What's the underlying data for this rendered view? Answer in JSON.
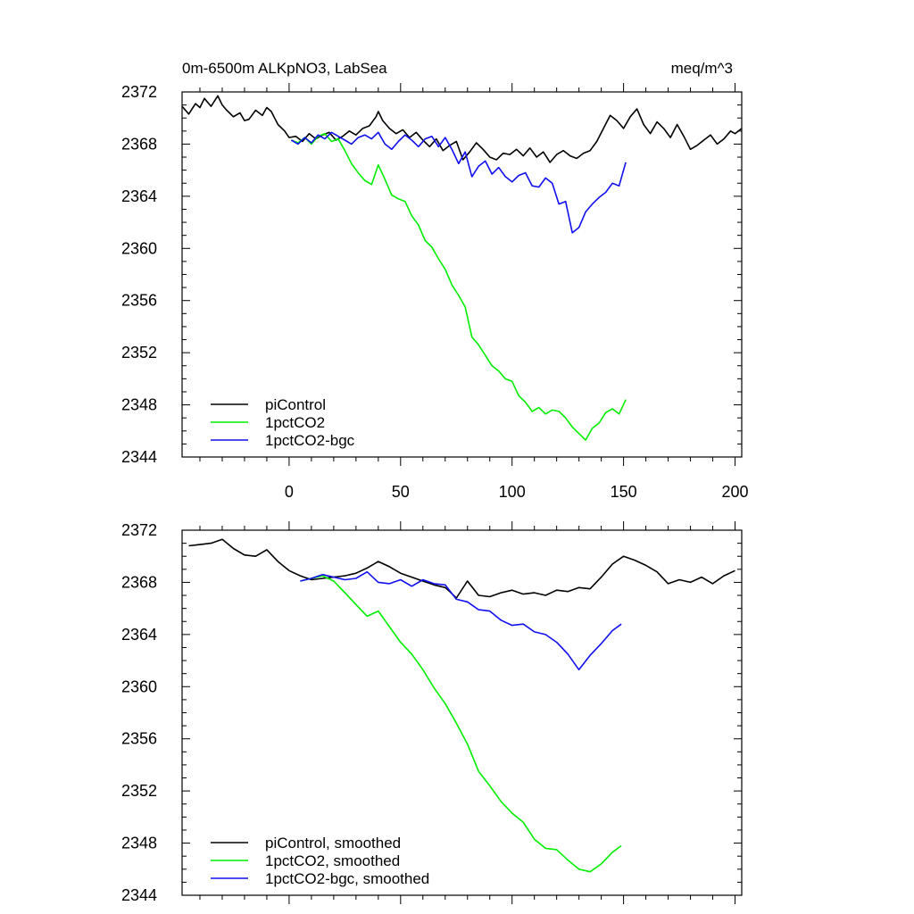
{
  "colors": {
    "piControl": "#000000",
    "1pctCO2": "#00ee00",
    "1pctCO2-bgc": "#1010ee"
  },
  "chart_data": [
    {
      "type": "line",
      "title": "0m-6500m ALKpNO3, LabSea",
      "units": "meq/m^3",
      "xlim": [
        -48,
        203
      ],
      "ylim": [
        2344,
        2372
      ],
      "x_ticks": [
        0,
        50,
        100,
        150,
        200
      ],
      "x_tick_labels": [
        "0",
        "50",
        "100",
        "150",
        "200"
      ],
      "y_ticks": [
        2344,
        2348,
        2352,
        2356,
        2360,
        2364,
        2368,
        2372
      ],
      "y_tick_labels": [
        "2344",
        "2348",
        "2352",
        "2356",
        "2360",
        "2364",
        "2368",
        "2372"
      ],
      "legend_position": "bottom-left",
      "series": [
        {
          "name": "piControl",
          "color_key": "piControl",
          "x": [
            -48,
            -45,
            -42,
            -40,
            -38,
            -35,
            -32,
            -30,
            -28,
            -25,
            -22,
            -20,
            -18,
            -15,
            -12,
            -10,
            -8,
            -5,
            -2,
            0,
            3,
            6,
            9,
            12,
            15,
            18,
            21,
            24,
            27,
            30,
            33,
            36,
            39,
            40,
            42,
            45,
            48,
            51,
            54,
            57,
            60,
            63,
            66,
            69,
            72,
            75,
            78,
            81,
            84,
            87,
            90,
            93,
            96,
            99,
            102,
            105,
            108,
            111,
            114,
            117,
            120,
            123,
            126,
            129,
            132,
            135,
            138,
            141,
            144,
            147,
            150,
            153,
            156,
            159,
            162,
            165,
            168,
            171,
            174,
            177,
            180,
            183,
            186,
            189,
            192,
            195,
            198,
            200,
            203
          ],
          "y": [
            2370.9,
            2370.3,
            2371.1,
            2370.8,
            2371.5,
            2370.9,
            2371.7,
            2371.0,
            2370.6,
            2370.1,
            2370.4,
            2369.8,
            2369.9,
            2370.6,
            2370.2,
            2370.8,
            2370.5,
            2369.5,
            2369.0,
            2368.5,
            2368.6,
            2368.2,
            2368.8,
            2368.4,
            2368.7,
            2368.9,
            2368.3,
            2368.6,
            2369.0,
            2368.7,
            2369.2,
            2369.4,
            2370.1,
            2370.5,
            2369.8,
            2369.2,
            2368.8,
            2369.1,
            2368.5,
            2368.9,
            2368.3,
            2367.8,
            2368.4,
            2367.5,
            2367.9,
            2368.2,
            2366.8,
            2367.4,
            2368.1,
            2367.6,
            2367.0,
            2366.8,
            2367.3,
            2367.2,
            2367.6,
            2367.1,
            2367.7,
            2367.0,
            2367.4,
            2366.6,
            2367.2,
            2367.5,
            2367.1,
            2366.9,
            2367.3,
            2367.5,
            2368.2,
            2369.2,
            2370.2,
            2369.8,
            2369.2,
            2370.1,
            2370.7,
            2369.5,
            2368.8,
            2369.7,
            2369.2,
            2368.5,
            2369.5,
            2368.6,
            2367.6,
            2367.9,
            2368.3,
            2368.7,
            2368.0,
            2368.4,
            2369.0,
            2368.8,
            2369.2
          ]
        },
        {
          "name": "1pctCO2",
          "color_key": "1pctCO2",
          "x": [
            1,
            4,
            7,
            10,
            13,
            16,
            19,
            22,
            25,
            28,
            31,
            34,
            37,
            40,
            43,
            46,
            49,
            52,
            55,
            58,
            61,
            64,
            67,
            70,
            73,
            76,
            79,
            82,
            85,
            88,
            91,
            94,
            97,
            100,
            103,
            106,
            109,
            112,
            115,
            118,
            121,
            124,
            127,
            130,
            133,
            136,
            139,
            142,
            145,
            148,
            151
          ],
          "y": [
            2368.3,
            2368.1,
            2368.5,
            2368.0,
            2368.6,
            2368.8,
            2368.2,
            2368.4,
            2367.5,
            2366.5,
            2365.8,
            2365.2,
            2364.9,
            2366.4,
            2365.3,
            2364.1,
            2363.8,
            2363.6,
            2362.5,
            2361.8,
            2360.6,
            2360.1,
            2359.2,
            2358.4,
            2357.2,
            2356.4,
            2355.5,
            2353.2,
            2352.6,
            2351.8,
            2351.0,
            2350.6,
            2350.0,
            2349.8,
            2348.7,
            2348.2,
            2347.5,
            2347.8,
            2347.3,
            2347.6,
            2347.5,
            2347.0,
            2346.3,
            2345.8,
            2345.3,
            2346.2,
            2346.6,
            2347.4,
            2347.7,
            2347.3,
            2348.4
          ]
        },
        {
          "name": "1pctCO2-bgc",
          "color_key": "1pctCO2-bgc",
          "x": [
            1,
            4,
            7,
            10,
            13,
            16,
            19,
            22,
            25,
            28,
            31,
            34,
            37,
            40,
            43,
            46,
            49,
            52,
            55,
            58,
            61,
            64,
            67,
            70,
            73,
            76,
            79,
            82,
            85,
            88,
            91,
            94,
            97,
            100,
            103,
            106,
            109,
            112,
            115,
            118,
            121,
            124,
            127,
            130,
            133,
            136,
            139,
            142,
            145,
            148,
            151
          ],
          "y": [
            2368.3,
            2368.0,
            2368.5,
            2368.1,
            2368.7,
            2368.4,
            2368.9,
            2368.6,
            2368.3,
            2368.0,
            2368.5,
            2368.7,
            2368.4,
            2368.9,
            2368.0,
            2367.6,
            2368.2,
            2368.7,
            2368.3,
            2367.8,
            2368.4,
            2368.6,
            2367.8,
            2368.5,
            2367.6,
            2366.5,
            2367.4,
            2365.5,
            2366.3,
            2366.7,
            2365.7,
            2366.2,
            2365.5,
            2365.1,
            2365.6,
            2365.8,
            2364.8,
            2364.7,
            2365.4,
            2365.0,
            2363.4,
            2363.6,
            2361.2,
            2361.6,
            2362.8,
            2363.4,
            2363.9,
            2364.3,
            2365.0,
            2364.8,
            2366.6
          ]
        }
      ]
    },
    {
      "type": "line",
      "xlim": [
        -48,
        203
      ],
      "ylim": [
        2344,
        2372
      ],
      "x_ticks": [
        0,
        50,
        100,
        150,
        200
      ],
      "y_ticks": [
        2344,
        2348,
        2352,
        2356,
        2360,
        2364,
        2368,
        2372
      ],
      "y_tick_labels": [
        "2344",
        "2348",
        "2352",
        "2356",
        "2360",
        "2364",
        "2368",
        "2372"
      ],
      "legend_position": "bottom-left",
      "series": [
        {
          "name": "piControl, smoothed",
          "color_key": "piControl",
          "x": [
            -45,
            -40,
            -35,
            -30,
            -25,
            -20,
            -15,
            -10,
            -5,
            0,
            5,
            10,
            15,
            20,
            25,
            30,
            35,
            40,
            45,
            50,
            55,
            60,
            65,
            70,
            72,
            75,
            80,
            85,
            90,
            95,
            100,
            105,
            110,
            115,
            120,
            125,
            130,
            135,
            140,
            145,
            150,
            155,
            160,
            165,
            170,
            175,
            180,
            185,
            190,
            195,
            200
          ],
          "y": [
            2370.8,
            2370.9,
            2371.0,
            2371.3,
            2370.6,
            2370.1,
            2370.0,
            2370.5,
            2369.6,
            2368.9,
            2368.5,
            2368.2,
            2368.3,
            2368.4,
            2368.5,
            2368.7,
            2369.1,
            2369.6,
            2369.2,
            2368.7,
            2368.4,
            2368.1,
            2367.8,
            2367.6,
            2367.3,
            2366.8,
            2368.1,
            2367.0,
            2366.9,
            2367.2,
            2367.4,
            2367.1,
            2367.2,
            2367.0,
            2367.4,
            2367.3,
            2367.6,
            2367.5,
            2368.4,
            2369.4,
            2370.0,
            2369.7,
            2369.3,
            2368.8,
            2367.9,
            2368.2,
            2368.0,
            2368.4,
            2367.9,
            2368.5,
            2368.9
          ]
        },
        {
          "name": "1pctCO2, smoothed",
          "color_key": "1pctCO2",
          "x": [
            5,
            10,
            15,
            20,
            25,
            30,
            35,
            40,
            45,
            50,
            55,
            60,
            65,
            70,
            75,
            80,
            85,
            90,
            95,
            100,
            105,
            110,
            115,
            120,
            125,
            130,
            135,
            140,
            145,
            149
          ],
          "y": [
            2368.1,
            2368.3,
            2368.5,
            2368.1,
            2367.2,
            2366.3,
            2365.4,
            2365.8,
            2364.6,
            2363.4,
            2362.5,
            2361.3,
            2359.9,
            2358.7,
            2357.2,
            2355.6,
            2353.5,
            2352.4,
            2351.2,
            2350.3,
            2349.6,
            2348.3,
            2347.6,
            2347.5,
            2346.7,
            2346.0,
            2345.8,
            2346.4,
            2347.3,
            2347.8
          ]
        },
        {
          "name": "1pctCO2-bgc, smoothed",
          "color_key": "1pctCO2-bgc",
          "x": [
            5,
            10,
            15,
            20,
            25,
            30,
            35,
            40,
            45,
            50,
            55,
            60,
            65,
            70,
            75,
            80,
            85,
            90,
            95,
            100,
            105,
            110,
            115,
            120,
            125,
            130,
            135,
            140,
            145,
            149
          ],
          "y": [
            2368.1,
            2368.3,
            2368.6,
            2368.4,
            2368.2,
            2368.3,
            2368.8,
            2368.0,
            2367.9,
            2368.2,
            2367.7,
            2368.2,
            2367.9,
            2367.8,
            2366.7,
            2366.5,
            2365.9,
            2365.8,
            2365.1,
            2364.7,
            2364.8,
            2364.2,
            2364.0,
            2363.4,
            2362.5,
            2361.3,
            2362.4,
            2363.3,
            2364.3,
            2364.8
          ]
        }
      ]
    }
  ]
}
